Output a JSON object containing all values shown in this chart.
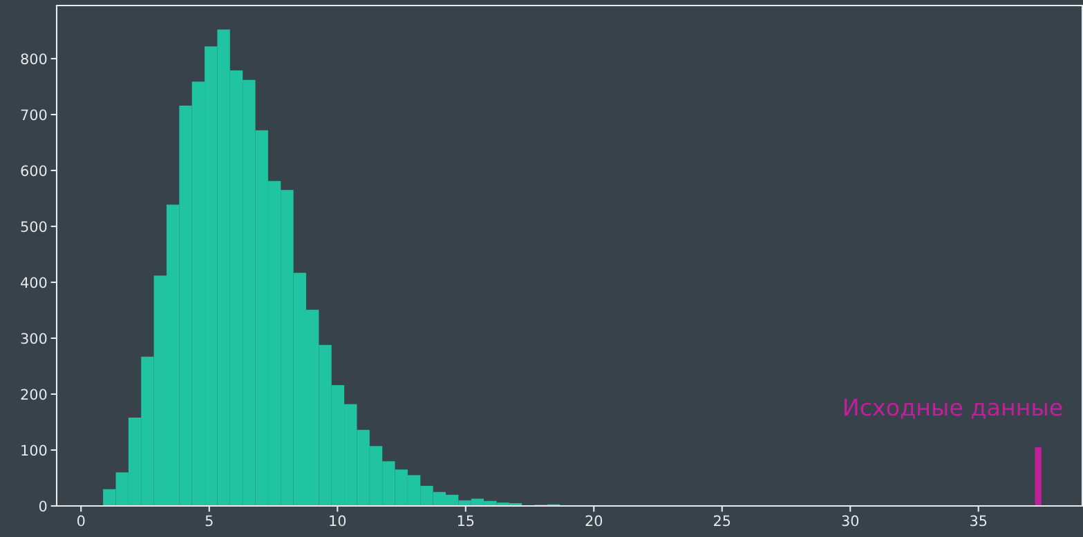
{
  "chart_data": {
    "type": "histogram",
    "bins": [
      0.86,
      1.355,
      1.85,
      2.345,
      2.84,
      3.335,
      3.83,
      4.325,
      4.82,
      5.315,
      5.81,
      6.305,
      6.8,
      7.295,
      7.79,
      8.285,
      8.78,
      9.275,
      9.77,
      10.265,
      10.76,
      11.255,
      11.75,
      12.245,
      12.74,
      13.235,
      13.73,
      14.225,
      14.72,
      15.215,
      15.71,
      16.205,
      16.7,
      17.195,
      17.69,
      18.185,
      18.68
    ],
    "series": [
      {
        "color": "#21c4a1",
        "values": [
          30,
          60,
          158,
          267,
          412,
          539,
          716,
          759,
          822,
          852,
          779,
          762,
          672,
          581,
          565,
          417,
          351,
          288,
          216,
          182,
          136,
          107,
          80,
          65,
          55,
          36,
          25,
          20,
          10,
          13,
          9,
          6,
          5,
          0,
          2,
          3
        ]
      },
      {
        "type": "bar",
        "color": "#c2209b",
        "x": [
          37.33
        ],
        "values": [
          105
        ]
      }
    ],
    "annotations": [
      "Исходные данные"
    ],
    "xlim": [
      -0.95,
      39.05
    ],
    "ylim": [
      0,
      895
    ],
    "xticks": [
      0,
      5,
      10,
      15,
      20,
      25,
      30,
      35
    ],
    "yticks": [
      0,
      100,
      200,
      300,
      400,
      500,
      600,
      700,
      800
    ]
  }
}
